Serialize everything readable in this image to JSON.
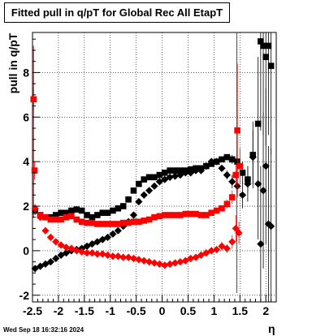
{
  "header": {
    "timestamp": "Wed Sep 18 16:32:16 2024"
  },
  "chart_data": {
    "type": "scatter",
    "title": "Fitted pull in q/pT for Global Rec All EtapT",
    "xlabel": "η",
    "ylabel": "pull in q/pT",
    "xlim": [
      -2.5,
      2.2
    ],
    "ylim": [
      -2.3,
      9.8
    ],
    "x_ticks": [
      "-2.5",
      "-2",
      "-1.5",
      "-1",
      "-0.5",
      "0",
      "0.5",
      "1",
      "1.5",
      "2"
    ],
    "y_ticks": [
      "-2",
      "0",
      "2",
      "4",
      "6",
      "8"
    ],
    "grid": true,
    "series": [
      {
        "color": "#000000",
        "marker": "square",
        "x": [
          -2.45,
          -2.35,
          -2.25,
          -2.15,
          -2.05,
          -1.95,
          -1.85,
          -1.75,
          -1.65,
          -1.55,
          -1.45,
          -1.35,
          -1.25,
          -1.15,
          -1.05,
          -0.95,
          -0.85,
          -0.75,
          -0.65,
          -0.55,
          -0.45,
          -0.35,
          -0.25,
          -0.15,
          -0.05,
          0.05,
          0.15,
          0.25,
          0.35,
          0.45,
          0.55,
          0.65,
          0.75,
          0.85,
          0.95,
          1.05,
          1.15,
          1.25,
          1.35,
          1.45,
          1.55,
          1.65,
          1.75,
          1.85,
          1.9,
          1.95,
          2.0,
          2.05,
          2.1
        ],
        "y": [
          1.8,
          1.6,
          1.5,
          1.5,
          1.6,
          1.7,
          1.7,
          1.8,
          1.85,
          1.8,
          1.6,
          1.5,
          1.6,
          1.7,
          1.7,
          1.8,
          1.9,
          2.0,
          2.3,
          2.7,
          3.0,
          3.2,
          3.3,
          3.3,
          3.4,
          3.5,
          3.6,
          3.6,
          3.6,
          3.6,
          3.65,
          3.7,
          3.7,
          3.8,
          3.9,
          4.0,
          4.1,
          4.2,
          4.1,
          4.0,
          3.5,
          3.2,
          4.3,
          5.7,
          9.4,
          9.2,
          8.7,
          9.2,
          8.3
        ],
        "errors": [
          0.2,
          0.1,
          0.1,
          0.1,
          0.1,
          0.1,
          0.1,
          0.1,
          0.1,
          0.1,
          0.1,
          0.1,
          0.1,
          0.1,
          0.1,
          0.1,
          0.1,
          0.1,
          0.1,
          0.1,
          0.1,
          0.1,
          0.1,
          0.1,
          0.1,
          0.1,
          0.1,
          0.1,
          0.1,
          0.1,
          0.1,
          0.1,
          0.1,
          0.1,
          0.1,
          0.1,
          0.1,
          0.1,
          0.2,
          0.3,
          0.5,
          0.6,
          1.5,
          3.0,
          4.0,
          4.0,
          4.0,
          4.0,
          4.0
        ]
      },
      {
        "color": "#000000",
        "marker": "diamond",
        "x": [
          -2.45,
          -2.35,
          -2.25,
          -2.15,
          -2.05,
          -1.95,
          -1.85,
          -1.75,
          -1.65,
          -1.55,
          -1.45,
          -1.35,
          -1.25,
          -1.15,
          -1.05,
          -0.95,
          -0.85,
          -0.75,
          -0.65,
          -0.55,
          -0.45,
          -0.35,
          -0.25,
          -0.15,
          -0.05,
          0.05,
          0.15,
          0.25,
          0.35,
          0.45,
          0.55,
          0.65,
          0.75,
          0.85,
          0.95,
          1.05,
          1.15,
          1.25,
          1.35,
          1.45,
          1.55,
          1.65,
          1.75,
          1.85,
          1.9,
          1.95,
          2.0,
          2.05,
          2.1
        ],
        "y": [
          -0.8,
          -0.7,
          -0.6,
          -0.5,
          -0.35,
          -0.2,
          -0.1,
          0.0,
          0.05,
          0.1,
          0.2,
          0.3,
          0.4,
          0.5,
          0.6,
          0.75,
          0.9,
          1.1,
          1.3,
          1.6,
          2.2,
          2.5,
          2.7,
          2.9,
          3.1,
          3.2,
          3.3,
          3.35,
          3.4,
          3.5,
          3.5,
          3.6,
          3.6,
          3.8,
          4.0,
          4.0,
          3.7,
          3.4,
          3.1,
          2.9,
          2.5,
          3.0,
          4.2,
          3.0,
          0.3,
          2.7,
          3.8,
          1.2,
          1.1
        ],
        "errors": [
          0.1,
          0.1,
          0.1,
          0.1,
          0.1,
          0.1,
          0.1,
          0.1,
          0.1,
          0.1,
          0.1,
          0.1,
          0.1,
          0.1,
          0.1,
          0.1,
          0.1,
          0.1,
          0.1,
          0.1,
          0.1,
          0.1,
          0.1,
          0.1,
          0.1,
          0.1,
          0.1,
          0.1,
          0.1,
          0.1,
          0.1,
          0.1,
          0.1,
          0.1,
          0.1,
          0.1,
          0.1,
          0.2,
          0.3,
          0.4,
          0.6,
          0.8,
          1.2,
          2.5,
          3.5,
          3.5,
          3.5,
          3.5,
          3.5
        ]
      },
      {
        "color": "#ff0000",
        "marker": "square",
        "x": [
          -2.48,
          -2.46,
          -2.35,
          -2.25,
          -2.15,
          -2.05,
          -1.95,
          -1.85,
          -1.75,
          -1.65,
          -1.55,
          -1.45,
          -1.35,
          -1.25,
          -1.15,
          -1.05,
          -0.95,
          -0.85,
          -0.75,
          -0.65,
          -0.55,
          -0.45,
          -0.35,
          -0.25,
          -0.15,
          -0.05,
          0.05,
          0.15,
          0.25,
          0.35,
          0.45,
          0.55,
          0.65,
          0.75,
          0.85,
          0.95,
          1.05,
          1.15,
          1.25,
          1.35,
          1.42,
          1.45,
          1.5
        ],
        "y": [
          6.8,
          3.6,
          1.6,
          1.5,
          1.4,
          1.4,
          1.4,
          1.5,
          1.55,
          1.4,
          1.3,
          1.25,
          1.25,
          1.2,
          1.2,
          1.2,
          1.2,
          1.2,
          1.25,
          1.25,
          1.3,
          1.3,
          1.35,
          1.4,
          1.5,
          1.55,
          1.6,
          1.6,
          1.6,
          1.6,
          1.65,
          1.65,
          1.65,
          1.6,
          1.6,
          1.7,
          1.8,
          1.9,
          2.1,
          2.4,
          3.4,
          5.4,
          3.8
        ],
        "errors": [
          0.5,
          0.4,
          0.1,
          0.1,
          0.1,
          0.1,
          0.1,
          0.1,
          0.1,
          0.1,
          0.1,
          0.1,
          0.1,
          0.1,
          0.1,
          0.1,
          0.1,
          0.1,
          0.1,
          0.1,
          0.1,
          0.1,
          0.1,
          0.1,
          0.1,
          0.1,
          0.1,
          0.1,
          0.1,
          0.1,
          0.1,
          0.1,
          0.1,
          0.1,
          0.1,
          0.1,
          0.1,
          0.1,
          0.2,
          0.3,
          0.5,
          3.0,
          0.8
        ]
      },
      {
        "color": "#ff0000",
        "marker": "diamond",
        "x": [
          -2.45,
          -2.35,
          -2.25,
          -2.15,
          -2.05,
          -1.95,
          -1.85,
          -1.75,
          -1.65,
          -1.55,
          -1.45,
          -1.35,
          -1.25,
          -1.15,
          -1.05,
          -0.95,
          -0.85,
          -0.75,
          -0.65,
          -0.55,
          -0.45,
          -0.35,
          -0.25,
          -0.15,
          -0.05,
          0.05,
          0.15,
          0.25,
          0.35,
          0.45,
          0.55,
          0.65,
          0.75,
          0.85,
          0.95,
          1.05,
          1.15,
          1.25,
          1.35,
          1.42,
          1.48
        ],
        "y": [
          1.9,
          1.5,
          0.9,
          0.6,
          0.4,
          0.25,
          0.15,
          0.1,
          0.0,
          -0.05,
          -0.1,
          -0.1,
          -0.15,
          -0.15,
          -0.2,
          -0.25,
          -0.25,
          -0.3,
          -0.3,
          -0.35,
          -0.4,
          -0.45,
          -0.5,
          -0.55,
          -0.6,
          -0.65,
          -0.6,
          -0.55,
          -0.5,
          -0.45,
          -0.35,
          -0.3,
          -0.2,
          -0.1,
          0.0,
          0.05,
          0.2,
          0.1,
          0.4,
          1.0,
          0.8
        ],
        "errors": [
          0.2,
          0.1,
          0.1,
          0.1,
          0.1,
          0.1,
          0.1,
          0.1,
          0.1,
          0.1,
          0.1,
          0.1,
          0.1,
          0.1,
          0.1,
          0.1,
          0.1,
          0.1,
          0.1,
          0.1,
          0.1,
          0.1,
          0.1,
          0.1,
          0.1,
          0.1,
          0.1,
          0.1,
          0.1,
          0.1,
          0.1,
          0.1,
          0.1,
          0.1,
          0.1,
          0.1,
          0.2,
          0.2,
          0.3,
          0.6,
          0.5
        ]
      }
    ],
    "vertical_lines": [
      {
        "x": -2.48,
        "color": "#ff0000",
        "ymin": 1.5,
        "ymax": 9.2
      },
      {
        "x": 1.44,
        "color": "#ff0000",
        "ymin": -1.9,
        "ymax": 9.8
      }
    ]
  }
}
